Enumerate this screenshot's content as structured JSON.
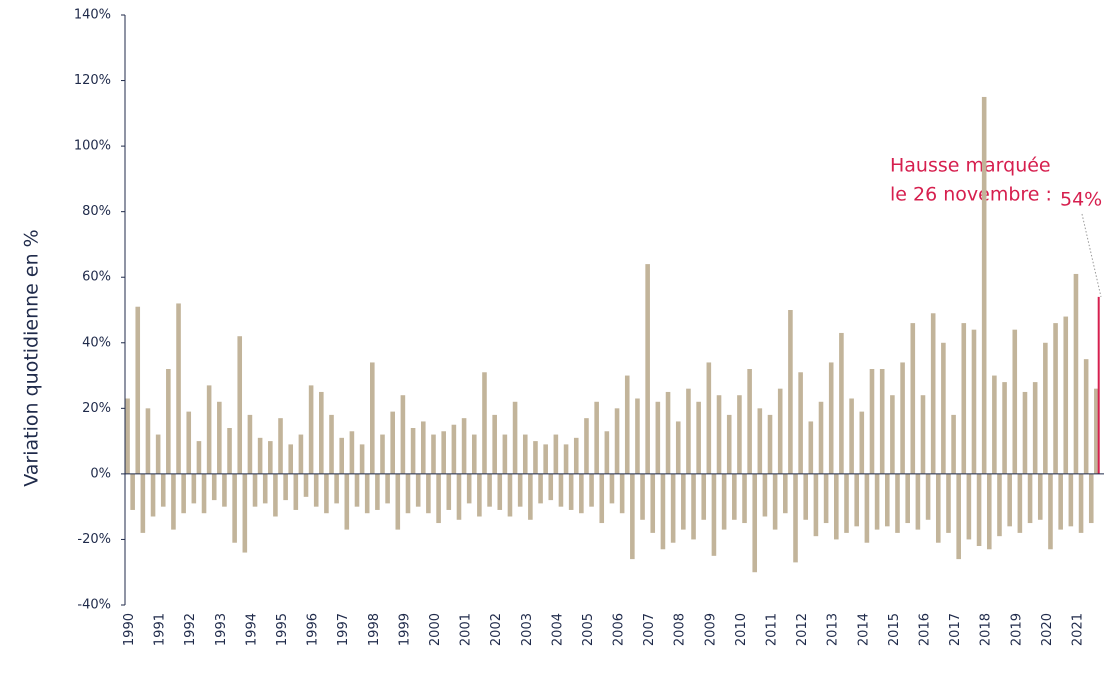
{
  "chart_data": {
    "type": "bar",
    "y_label": "Variation quotidienne en %",
    "annotation": {
      "line1": "Hausse marquée",
      "line2": "le 26 novembre :",
      "label": "54%"
    },
    "color": "#c2b49a",
    "highlight_color": "#d61f4e",
    "ylim": [
      -40,
      140
    ],
    "yticks": [
      {
        "value": -40,
        "label": "-40%"
      },
      {
        "value": -20,
        "label": "-20%"
      },
      {
        "value": 0,
        "label": "0%"
      },
      {
        "value": 20,
        "label": "20%"
      },
      {
        "value": 40,
        "label": "40%"
      },
      {
        "value": 60,
        "label": "60%"
      },
      {
        "value": 80,
        "label": "80%"
      },
      {
        "value": 100,
        "label": "100%"
      },
      {
        "value": 120,
        "label": "120%"
      },
      {
        "value": 140,
        "label": "140%"
      }
    ],
    "categories": [
      "1990",
      null,
      null,
      null,
      null,
      null,
      "1991",
      null,
      null,
      null,
      null,
      null,
      "1992",
      null,
      null,
      null,
      null,
      null,
      "1993",
      null,
      null,
      null,
      null,
      null,
      "1994",
      null,
      null,
      null,
      null,
      null,
      "1995",
      null,
      null,
      null,
      null,
      null,
      "1996",
      null,
      null,
      null,
      null,
      null,
      "1997",
      null,
      null,
      null,
      null,
      null,
      "1998",
      null,
      null,
      null,
      null,
      null,
      "1999",
      null,
      null,
      null,
      null,
      null,
      "2000",
      null,
      null,
      null,
      null,
      null,
      "2001",
      null,
      null,
      null,
      null,
      null,
      "2002",
      null,
      null,
      null,
      null,
      null,
      "2003",
      null,
      null,
      null,
      null,
      null,
      "2004",
      null,
      null,
      null,
      null,
      null,
      "2005",
      null,
      null,
      null,
      null,
      null,
      "2006",
      null,
      null,
      null,
      null,
      null,
      "2007",
      null,
      null,
      null,
      null,
      null,
      "2008",
      null,
      null,
      null,
      null,
      null,
      "2009",
      null,
      null,
      null,
      null,
      null,
      "2010",
      null,
      null,
      null,
      null,
      null,
      "2011",
      null,
      null,
      null,
      null,
      null,
      "2012",
      null,
      null,
      null,
      null,
      null,
      "2013",
      null,
      null,
      null,
      null,
      null,
      "2014",
      null,
      null,
      null,
      null,
      null,
      "2015",
      null,
      null,
      null,
      null,
      null,
      "2016",
      null,
      null,
      null,
      null,
      null,
      "2017",
      null,
      null,
      null,
      null,
      null,
      "2018",
      null,
      null,
      null,
      null,
      null,
      "2019",
      null,
      null,
      null,
      null,
      null,
      "2020",
      null,
      null,
      null,
      null,
      null,
      "2021",
      null,
      null,
      null,
      null,
      null
    ],
    "values": [
      23,
      -11,
      51,
      -18,
      20,
      -13,
      12,
      -10,
      32,
      -17,
      52,
      -12,
      19,
      -9,
      10,
      -12,
      27,
      -8,
      22,
      -10,
      14,
      -21,
      42,
      -24,
      18,
      -10,
      11,
      -9,
      10,
      -13,
      17,
      -8,
      9,
      -11,
      12,
      -7,
      27,
      -10,
      25,
      -12,
      18,
      -9,
      11,
      -17,
      13,
      -10,
      9,
      -12,
      34,
      -11,
      12,
      -9,
      19,
      -17,
      24,
      -12,
      14,
      -10,
      16,
      -12,
      12,
      -15,
      13,
      -11,
      15,
      -14,
      17,
      -9,
      12,
      -13,
      31,
      -10,
      18,
      -11,
      12,
      -13,
      22,
      -10,
      12,
      -14,
      10,
      -9,
      9,
      -8,
      12,
      -10,
      9,
      -11,
      11,
      -12,
      17,
      -10,
      22,
      -15,
      13,
      -9,
      20,
      -12,
      30,
      -26,
      23,
      -14,
      64,
      -18,
      22,
      -23,
      25,
      -21,
      16,
      -17,
      26,
      -20,
      22,
      -14,
      34,
      -25,
      24,
      -17,
      18,
      -14,
      24,
      -15,
      32,
      -30,
      20,
      -13,
      18,
      -17,
      26,
      -12,
      50,
      -27,
      31,
      -14,
      16,
      -19,
      22,
      -15,
      34,
      -20,
      43,
      -18,
      23,
      -16,
      19,
      -21,
      32,
      -17,
      32,
      -16,
      24,
      -18,
      34,
      -15,
      46,
      -17,
      24,
      -14,
      49,
      -21,
      40,
      -18,
      18,
      -26,
      46,
      -20,
      44,
      -22,
      115,
      -23,
      30,
      -19,
      28,
      -16,
      44,
      -18,
      25,
      -15,
      28,
      -14,
      40,
      -23,
      46,
      -17,
      48,
      -16,
      61,
      -18,
      35,
      -15,
      26,
      54
    ]
  }
}
